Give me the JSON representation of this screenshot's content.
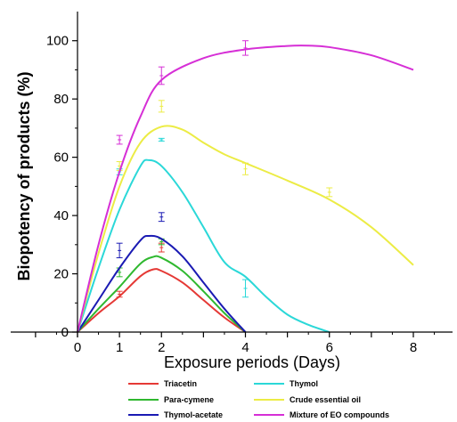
{
  "chart_data": {
    "type": "line",
    "xlabel": "Exposure periods (Days)",
    "ylabel": "Biopotency of products (%)",
    "xlim": [
      0,
      9
    ],
    "ylim": [
      0,
      110
    ],
    "x_ticks": [
      0,
      1,
      2,
      4,
      6,
      8
    ],
    "x_tick_labels": [
      "0",
      "1",
      "2",
      "4",
      "6",
      "8"
    ],
    "y_ticks": [
      0,
      20,
      40,
      60,
      80,
      100
    ],
    "y_tick_labels": [
      "0",
      "20",
      "40",
      "60",
      "80",
      "100"
    ],
    "grid": false,
    "legend_position": "bottom",
    "series": [
      {
        "name": "Triacetin",
        "color": "#e53935",
        "points": [
          [
            0,
            0
          ],
          [
            1,
            13
          ],
          [
            2,
            29
          ],
          [
            4,
            0
          ]
        ],
        "errors": [
          1,
          1.5
        ],
        "curve": [
          [
            0,
            0
          ],
          [
            0.5,
            6.5
          ],
          [
            1,
            12.3
          ],
          [
            1.5,
            19.2
          ],
          [
            1.8,
            21.5
          ],
          [
            2,
            21
          ],
          [
            2.5,
            17
          ],
          [
            3,
            11
          ],
          [
            3.5,
            5
          ],
          [
            4,
            0
          ]
        ]
      },
      {
        "name": "Para-cymene",
        "color": "#2fb82f",
        "points": [
          [
            0,
            0
          ],
          [
            1,
            20.5
          ],
          [
            2,
            31
          ],
          [
            4,
            0
          ]
        ],
        "errors": [
          1.5,
          1
        ],
        "curve": [
          [
            0,
            0
          ],
          [
            0.5,
            8
          ],
          [
            1,
            15.5
          ],
          [
            1.5,
            23.5
          ],
          [
            1.8,
            25.8
          ],
          [
            2,
            25.5
          ],
          [
            2.5,
            21
          ],
          [
            3,
            14
          ],
          [
            3.5,
            6.5
          ],
          [
            4,
            0
          ]
        ]
      },
      {
        "name": "Thymol-acetate",
        "color": "#1a1ab3",
        "points": [
          [
            0,
            0
          ],
          [
            1,
            28
          ],
          [
            2,
            39.5
          ],
          [
            4,
            0
          ]
        ],
        "errors": [
          2.5,
          1.5
        ],
        "curve": [
          [
            0,
            0
          ],
          [
            0.5,
            11
          ],
          [
            1,
            22
          ],
          [
            1.5,
            31.5
          ],
          [
            1.7,
            33
          ],
          [
            2,
            32
          ],
          [
            2.5,
            26
          ],
          [
            3,
            17
          ],
          [
            3.5,
            8
          ],
          [
            4,
            0
          ]
        ]
      },
      {
        "name": "Thymol",
        "color": "#2bd8d8",
        "points": [
          [
            0,
            0
          ],
          [
            1,
            55
          ],
          [
            2,
            66
          ],
          [
            4,
            15
          ],
          [
            6,
            0
          ]
        ],
        "errors": [
          1,
          0.5,
          3
        ],
        "curve": [
          [
            0,
            0
          ],
          [
            0.5,
            22
          ],
          [
            1,
            42
          ],
          [
            1.5,
            57
          ],
          [
            1.7,
            59
          ],
          [
            2,
            57
          ],
          [
            2.5,
            48
          ],
          [
            3,
            36
          ],
          [
            3.5,
            24
          ],
          [
            4,
            19
          ],
          [
            4.5,
            12
          ],
          [
            5,
            6
          ],
          [
            5.5,
            2.5
          ],
          [
            6,
            0
          ]
        ]
      },
      {
        "name": "Crude essential oil",
        "color": "#ecec45",
        "points": [
          [
            0,
            0
          ],
          [
            1,
            57
          ],
          [
            2,
            77.5
          ],
          [
            4,
            56
          ],
          [
            6,
            48
          ]
        ],
        "errors": [
          1.5,
          2,
          2,
          1.5
        ],
        "curve": [
          [
            0,
            0
          ],
          [
            0.5,
            27
          ],
          [
            1,
            50
          ],
          [
            1.5,
            65
          ],
          [
            2,
            70.5
          ],
          [
            2.5,
            69.5
          ],
          [
            3,
            65
          ],
          [
            3.5,
            61
          ],
          [
            4,
            58
          ],
          [
            5,
            52
          ],
          [
            6,
            45.5
          ],
          [
            7,
            36
          ],
          [
            8,
            23
          ]
        ]
      },
      {
        "name": "Mixture of EO compounds",
        "color": "#d62fd6",
        "points": [
          [
            0,
            0
          ],
          [
            1,
            66
          ],
          [
            2,
            88
          ],
          [
            4,
            97.5
          ]
        ],
        "errors": [
          1.5,
          3,
          2.5
        ],
        "curve": [
          [
            0,
            0
          ],
          [
            0.5,
            30
          ],
          [
            1,
            55
          ],
          [
            1.5,
            74
          ],
          [
            2,
            86.5
          ],
          [
            3,
            94
          ],
          [
            4,
            97
          ],
          [
            5,
            98.2
          ],
          [
            5.5,
            98.3
          ],
          [
            6,
            97.8
          ],
          [
            7,
            95
          ],
          [
            8,
            90
          ]
        ]
      }
    ],
    "legend_order": [
      "Triacetin",
      "Thymol",
      "Para-cymene",
      "Crude essential oil",
      "Thymol-acetate",
      "Mixture of EO compounds"
    ]
  }
}
